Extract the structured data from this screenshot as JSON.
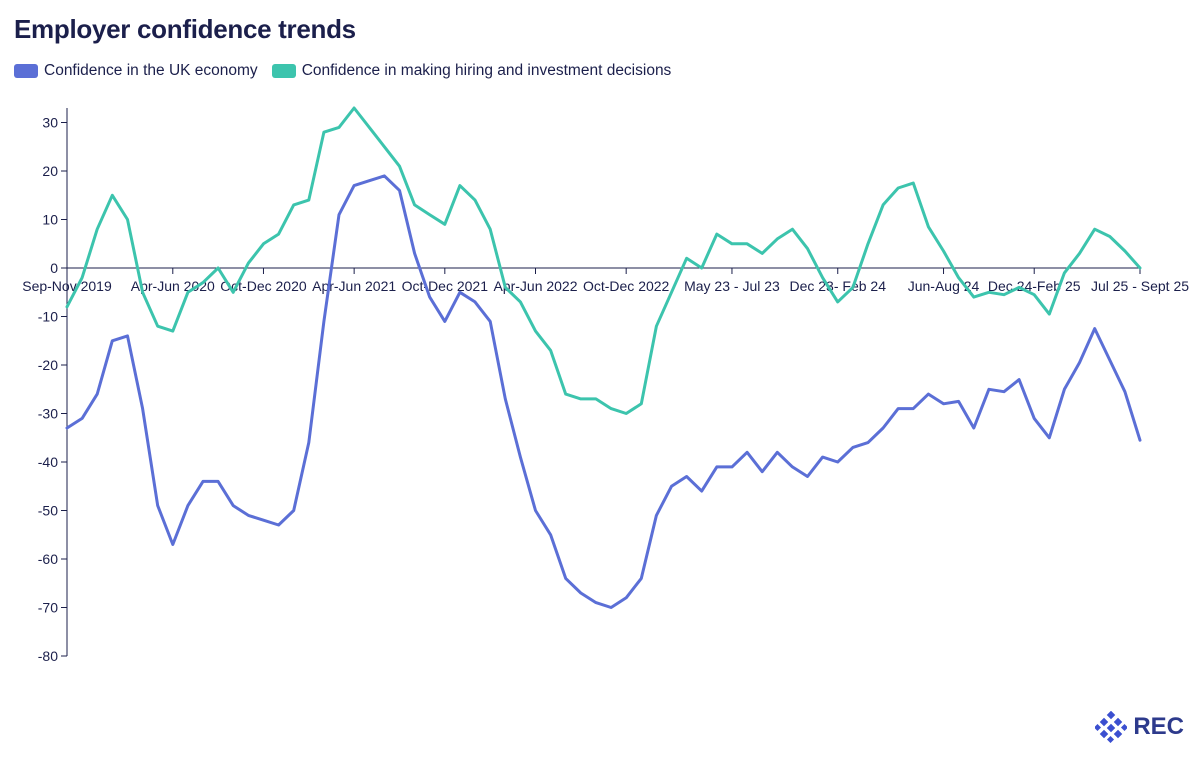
{
  "title": "Employer confidence trends",
  "logo_text": "REC",
  "colors": {
    "uk_economy": "#5b6fd6",
    "hiring": "#3cc4ad",
    "axis": "#1b1f4b",
    "text": "#1b1f4b"
  },
  "chart_data": {
    "type": "line",
    "title": "Employer confidence trends",
    "xlabel": "",
    "ylabel": "",
    "ylim": [
      -80,
      33
    ],
    "yticks": [
      30,
      20,
      10,
      0,
      -10,
      -20,
      -30,
      -40,
      -50,
      -60,
      -70,
      -80
    ],
    "grid": false,
    "legend_position": "top-left",
    "x_tick_labels": [
      {
        "index": 0,
        "label": "Sep-Nov 2019"
      },
      {
        "index": 7,
        "label": "Apr-Jun 2020"
      },
      {
        "index": 13,
        "label": "Oct-Dec 2020"
      },
      {
        "index": 19,
        "label": "Apr-Jun 2021"
      },
      {
        "index": 25,
        "label": "Oct-Dec 2021"
      },
      {
        "index": 31,
        "label": "Apr-Jun 2022"
      },
      {
        "index": 37,
        "label": "Oct-Dec 2022"
      },
      {
        "index": 44,
        "label": "May 23 - Jul 23"
      },
      {
        "index": 51,
        "label": "Dec 23- Feb 24"
      },
      {
        "index": 58,
        "label": "Jun-Aug 24"
      },
      {
        "index": 64,
        "label": "Dec 24-Feb 25"
      },
      {
        "index": 71,
        "label": "Jul 25 - Sept 25"
      }
    ],
    "series": [
      {
        "name": "Confidence in the UK economy",
        "values": [
          -33,
          -31,
          -26,
          -15,
          -14,
          -29,
          -49,
          -57,
          -49,
          -44,
          -44,
          -49,
          -51,
          -52,
          -53,
          -50,
          -36,
          -11,
          11,
          17,
          18,
          19,
          16,
          3,
          -6,
          -11,
          -5,
          -7,
          -11,
          -27,
          -39,
          -50,
          -55,
          -64,
          -67,
          -69,
          -70,
          -68,
          -64,
          -51,
          -45,
          -43,
          -46,
          -41,
          -41,
          -38,
          -42,
          -38,
          -41,
          -43,
          -39,
          -40,
          -37,
          -36,
          -33,
          -29,
          -29,
          -26,
          -28,
          -27.5,
          -33,
          -25,
          -25.5,
          -23,
          -31,
          -35,
          -25,
          -19.5,
          -12.5,
          -19,
          -25.5,
          -35.5
        ]
      },
      {
        "name": "Confidence in making hiring and investment decisions",
        "values": [
          -8,
          -2,
          8,
          15,
          10,
          -5,
          -12,
          -13,
          -5,
          -3,
          0,
          -5,
          1,
          5,
          7,
          13,
          14,
          28,
          29,
          33,
          29,
          25,
          21,
          13,
          11,
          9,
          17,
          14,
          8,
          -4,
          -7,
          -13,
          -17,
          -26,
          -27,
          -27,
          -29,
          -30,
          -28,
          -12,
          -5,
          2,
          0,
          7,
          5,
          5,
          3,
          6,
          8,
          4,
          -2,
          -7,
          -4,
          5,
          13,
          16.5,
          17.5,
          8.5,
          3.5,
          -2,
          -6,
          -5,
          -5.5,
          -4,
          -5.5,
          -9.5,
          -1,
          3,
          8,
          6.5,
          3.5,
          0
        ]
      }
    ]
  }
}
